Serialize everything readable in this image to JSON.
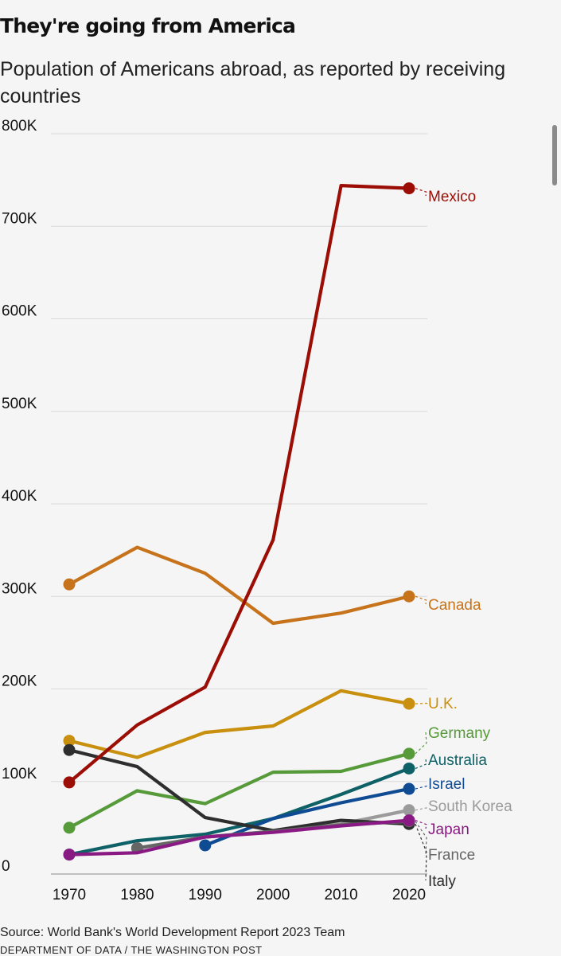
{
  "chart_data": {
    "type": "line",
    "title": "They're going from America",
    "subtitle": "Population of Americans abroad, as reported by receiving countries",
    "x": [
      1970,
      1980,
      1990,
      2000,
      2010,
      2020
    ],
    "xticks": [
      "1970",
      "1980",
      "1990",
      "2000",
      "2010",
      "2020"
    ],
    "ylim": [
      0,
      800000
    ],
    "yticks": [
      0,
      100000,
      200000,
      300000,
      400000,
      500000,
      600000,
      700000,
      800000
    ],
    "ytick_labels": [
      "0",
      "100K",
      "200K",
      "300K",
      "400K",
      "500K",
      "600K",
      "700K",
      "800K"
    ],
    "grid": true,
    "series": [
      {
        "name": "Canada",
        "color": "#c7731b",
        "points": [
          [
            1970,
            313000
          ],
          [
            1980,
            353000
          ],
          [
            1990,
            325000
          ],
          [
            2000,
            271000
          ],
          [
            2010,
            282000
          ],
          [
            2020,
            300000
          ]
        ]
      },
      {
        "name": "U.K.",
        "color": "#c8900e",
        "points": [
          [
            1970,
            144000
          ],
          [
            1980,
            126000
          ],
          [
            1990,
            153000
          ],
          [
            2000,
            160000
          ],
          [
            2010,
            198000
          ],
          [
            2020,
            184000
          ]
        ]
      },
      {
        "name": "Germany",
        "color": "#569a3a",
        "points": [
          [
            1970,
            50000
          ],
          [
            1980,
            90000
          ],
          [
            1990,
            76000
          ],
          [
            2000,
            110000
          ],
          [
            2010,
            111000
          ],
          [
            2020,
            130000
          ]
        ]
      },
      {
        "name": "Australia",
        "color": "#0e6166",
        "points": [
          [
            1970,
            21000
          ],
          [
            1980,
            36000
          ],
          [
            1990,
            43000
          ],
          [
            2000,
            60000
          ],
          [
            2010,
            86000
          ],
          [
            2020,
            114000
          ]
        ]
      },
      {
        "name": "Israel",
        "color": "#0f4b93",
        "points": [
          [
            1990,
            31000
          ],
          [
            2000,
            60000
          ],
          [
            2010,
            77000
          ],
          [
            2020,
            92000
          ]
        ]
      },
      {
        "name": "South Korea",
        "color": "#9b9b9b",
        "points": [
          [
            1980,
            28000
          ],
          [
            1990,
            40000
          ],
          [
            2000,
            46000
          ],
          [
            2010,
            54000
          ],
          [
            2020,
            69000
          ]
        ]
      },
      {
        "name": "Italy",
        "color": "#2e2e2e",
        "points": [
          [
            1970,
            134000
          ],
          [
            1980,
            116000
          ],
          [
            1990,
            61000
          ],
          [
            2000,
            47000
          ],
          [
            2010,
            58000
          ],
          [
            2020,
            54000
          ]
        ]
      },
      {
        "name": "France",
        "color": "#666666",
        "points": [
          [
            1980,
            28000
          ],
          [
            1990,
            40000
          ],
          [
            2000,
            46000
          ],
          [
            2010,
            53000
          ],
          [
            2020,
            57000
          ]
        ]
      },
      {
        "name": "Japan",
        "color": "#8a1a83",
        "points": [
          [
            1970,
            21000
          ],
          [
            1980,
            23000
          ],
          [
            1990,
            40000
          ],
          [
            2000,
            45000
          ],
          [
            2010,
            52000
          ],
          [
            2020,
            58000
          ]
        ]
      },
      {
        "name": "Mexico",
        "color": "#9c0d05",
        "points": [
          [
            1970,
            99000
          ],
          [
            1980,
            161000
          ],
          [
            1990,
            202000
          ],
          [
            2000,
            361000
          ],
          [
            2010,
            744000
          ],
          [
            2020,
            741000
          ]
        ]
      }
    ],
    "labels": [
      {
        "name": "Mexico",
        "color": "#9c0d05"
      },
      {
        "name": "Canada",
        "color": "#c7731b"
      },
      {
        "name": "U.K.",
        "color": "#c8900e"
      },
      {
        "name": "Germany",
        "color": "#569a3a"
      },
      {
        "name": "Australia",
        "color": "#0e6166"
      },
      {
        "name": "Israel",
        "color": "#0f4b93"
      },
      {
        "name": "South Korea",
        "color": "#9b9b9b"
      },
      {
        "name": "Japan",
        "color": "#8a1a83"
      },
      {
        "name": "France",
        "color": "#666666"
      },
      {
        "name": "Italy",
        "color": "#2e2e2e"
      }
    ]
  },
  "footer": {
    "source": "Source: World Bank's World Development Report 2023 Team",
    "credit": "DEPARTMENT OF DATA / THE WASHINGTON POST"
  },
  "colors": {
    "background": "#f5f5f5",
    "grid": "#d9d9d9"
  }
}
